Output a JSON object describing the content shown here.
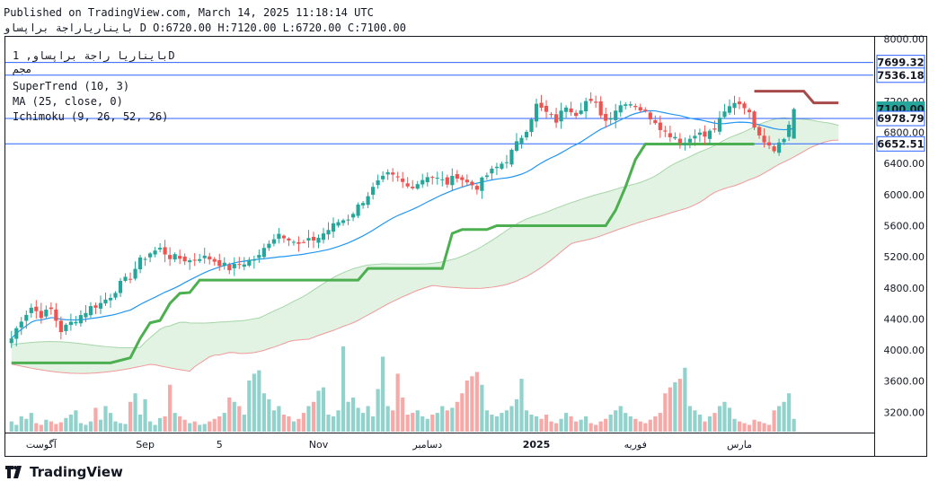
{
  "header": {
    "published": "Published on TradingView.com, March 14, 2025 11:18:14 UTC",
    "ohlc": "بایناریاراجة براپساو D O:6720.00 H:7120.00 L:6720.00 C:7100.00"
  },
  "legend": {
    "symbol": "بایناریا راجة براپساو, 1D",
    "exchange": "مجم",
    "indicators": [
      "SuperTrend (10, 3)",
      "MA (25, close, 0)",
      "Ichimoku (9, 26, 52, 26)"
    ]
  },
  "brand": "TradingView",
  "colors": {
    "up": "#26a69a",
    "down": "#ef5350",
    "supertrend_up": "#4caf50",
    "supertrend_down": "#a84a4a",
    "ma": "#2196f3",
    "cloud": "#c8e6c9",
    "hline": "#2962ff"
  },
  "chart_data": {
    "type": "candlestick",
    "x_ticks": [
      "آگوست",
      "Sep",
      "5",
      "Nov",
      "دسامبر",
      "2025",
      "فوریه",
      "مارس"
    ],
    "y_ticks": [
      "8000.00",
      "7600.00",
      "7200.00",
      "6800.00",
      "6400.00",
      "6000.00",
      "5600.00",
      "5200.00",
      "4800.00",
      "4400.00",
      "4000.00",
      "3600.00",
      "3200.00"
    ],
    "ylim": [
      2950,
      8030
    ],
    "horizontal_lines": [
      7699.32,
      7536.18,
      6978.79,
      6652.51
    ],
    "price_labels": [
      {
        "text": "7699.32",
        "value": 7699.32,
        "style": "line"
      },
      {
        "text": "7536.18",
        "value": 7536.18,
        "style": "line"
      },
      {
        "text": "7100.00",
        "value": 7100,
        "style": "last"
      },
      {
        "text": "6978.79",
        "value": 6978.79,
        "style": "line"
      },
      {
        "text": "6652.51",
        "value": 6652.51,
        "style": "line"
      }
    ],
    "last_close": 7100,
    "anchors": [
      [
        0,
        4150
      ],
      [
        2,
        4400
      ],
      [
        4,
        4550
      ],
      [
        6,
        4450
      ],
      [
        8,
        4520
      ],
      [
        10,
        4250
      ],
      [
        12,
        4350
      ],
      [
        14,
        4450
      ],
      [
        16,
        4550
      ],
      [
        18,
        4600
      ],
      [
        20,
        4700
      ],
      [
        22,
        4850
      ],
      [
        24,
        4950
      ],
      [
        26,
        5150
      ],
      [
        28,
        5250
      ],
      [
        30,
        5300
      ],
      [
        32,
        5200
      ],
      [
        34,
        5180
      ],
      [
        36,
        5150
      ],
      [
        38,
        5200
      ],
      [
        40,
        5180
      ],
      [
        42,
        5120
      ],
      [
        44,
        5050
      ],
      [
        46,
        5100
      ],
      [
        48,
        5150
      ],
      [
        50,
        5200
      ],
      [
        52,
        5400
      ],
      [
        54,
        5500
      ],
      [
        56,
        5450
      ],
      [
        58,
        5350
      ],
      [
        60,
        5400
      ],
      [
        62,
        5450
      ],
      [
        64,
        5550
      ],
      [
        66,
        5650
      ],
      [
        68,
        5700
      ],
      [
        70,
        5850
      ],
      [
        72,
        6000
      ],
      [
        74,
        6150
      ],
      [
        76,
        6250
      ],
      [
        78,
        6200
      ],
      [
        80,
        6100
      ],
      [
        82,
        6150
      ],
      [
        84,
        6250
      ],
      [
        86,
        6200
      ],
      [
        88,
        6150
      ],
      [
        90,
        6250
      ],
      [
        92,
        6150
      ],
      [
        94,
        6100
      ],
      [
        96,
        6250
      ],
      [
        98,
        6350
      ],
      [
        100,
        6450
      ],
      [
        102,
        6650
      ],
      [
        104,
        6850
      ],
      [
        106,
        7150
      ],
      [
        108,
        7050
      ],
      [
        110,
        6950
      ],
      [
        112,
        7150
      ],
      [
        114,
        7050
      ],
      [
        116,
        7200
      ],
      [
        118,
        7150
      ],
      [
        120,
        6950
      ],
      [
        122,
        7100
      ],
      [
        124,
        7200
      ],
      [
        126,
        7150
      ],
      [
        128,
        7050
      ],
      [
        130,
        6950
      ],
      [
        132,
        6800
      ],
      [
        134,
        6750
      ],
      [
        136,
        6650
      ],
      [
        138,
        6800
      ],
      [
        140,
        6750
      ],
      [
        142,
        6850
      ],
      [
        144,
        7050
      ],
      [
        146,
        7200
      ],
      [
        148,
        7150
      ],
      [
        150,
        6900
      ],
      [
        152,
        6700
      ],
      [
        154,
        6600
      ],
      [
        156,
        6720
      ],
      [
        158,
        7100
      ]
    ],
    "supertrend_up": [
      [
        0,
        3835
      ],
      [
        20,
        3835
      ],
      [
        24,
        3900
      ],
      [
        26,
        4150
      ],
      [
        28,
        4350
      ],
      [
        30,
        4380
      ],
      [
        32,
        4600
      ],
      [
        34,
        4730
      ],
      [
        36,
        4740
      ],
      [
        38,
        4900
      ],
      [
        70,
        4900
      ],
      [
        72,
        5050
      ],
      [
        87,
        5050
      ],
      [
        89,
        5500
      ],
      [
        91,
        5550
      ],
      [
        96,
        5550
      ],
      [
        98,
        5600
      ],
      [
        120,
        5600
      ],
      [
        122,
        5800
      ],
      [
        124,
        6100
      ],
      [
        126,
        6450
      ],
      [
        128,
        6650
      ],
      [
        150,
        6650
      ]
    ],
    "supertrend_down": [
      [
        150,
        7330
      ],
      [
        160,
        7330
      ],
      [
        162,
        7180
      ],
      [
        167,
        7180
      ]
    ],
    "volumes": [
      12,
      8,
      18,
      15,
      22,
      10,
      8,
      14,
      12,
      9,
      11,
      16,
      20,
      25,
      10,
      8,
      12,
      28,
      14,
      30,
      22,
      12,
      10,
      9,
      35,
      45,
      20,
      38,
      12,
      8,
      16,
      18,
      55,
      22,
      18,
      14,
      10,
      12,
      8,
      9,
      12,
      15,
      18,
      22,
      40,
      35,
      30,
      20,
      60,
      68,
      72,
      45,
      38,
      25,
      30,
      20,
      18,
      12,
      15,
      22,
      30,
      35,
      48,
      52,
      20,
      18,
      25,
      100,
      35,
      40,
      28,
      22,
      30,
      18,
      50,
      88,
      30,
      25,
      68,
      40,
      20,
      22,
      25,
      18,
      15,
      20,
      22,
      30,
      25,
      28,
      35,
      45,
      60,
      65,
      70,
      55,
      25,
      20,
      18,
      22,
      25,
      30,
      38,
      62,
      25,
      20,
      18,
      15,
      20,
      12,
      10,
      15,
      22,
      18,
      12,
      14,
      18,
      10,
      8,
      12,
      15,
      20,
      25,
      30,
      22,
      18,
      15,
      12,
      10,
      14,
      18,
      22,
      45,
      52,
      58,
      62,
      75,
      30,
      25,
      20,
      12,
      18,
      22,
      30,
      35,
      28,
      15,
      12,
      10,
      8,
      14,
      12,
      10,
      8,
      25,
      30,
      35,
      45,
      15,
      8
    ]
  }
}
